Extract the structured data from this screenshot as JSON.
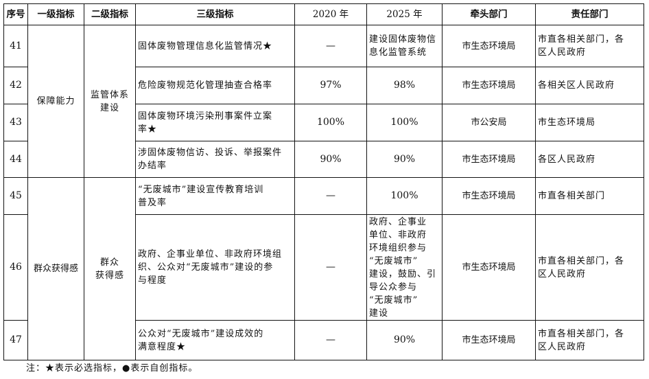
{
  "headers": [
    "序号",
    "一级指标",
    "二级指标",
    "三级指标",
    "2020 年",
    "2025 年",
    "牵头部门",
    "责任部门"
  ],
  "groups": {
    "level1_a": "保障能力",
    "level2_a": "监管体系\n建设",
    "level1_b": "群众获得感",
    "level2_b": "群众\n获得感"
  },
  "rows": [
    {
      "no": "41",
      "indicator": "固体废物管理信息化监管情况★",
      "y2020": "—",
      "y2025": "建设固体废物信\n息化监管系统",
      "lead": "市生态环境局",
      "resp": "市直各相关部门，各\n区人民政府"
    },
    {
      "no": "42",
      "indicator": "危险废物规范化管理抽查合格率",
      "y2020": "97%",
      "y2025": "98%",
      "lead": "市生态环境局",
      "resp": "各相关区人民政府"
    },
    {
      "no": "43",
      "indicator": "固体废物环境污染刑事案件立案\n率★",
      "y2020": "100%",
      "y2025": "100%",
      "lead": "市公安局",
      "resp": "市生态环境局"
    },
    {
      "no": "44",
      "indicator": "涉固体废物信访、投诉、举报案件\n办结率",
      "y2020": "90%",
      "y2025": "90%",
      "lead": "市生态环境局",
      "resp": "各区人民政府"
    },
    {
      "no": "45",
      "indicator": "“无废城市”建设宣传教育培训\n普及率",
      "y2020": "—",
      "y2025": "100%",
      "lead": "市生态环境局",
      "resp": "市直各相关部门"
    },
    {
      "no": "46",
      "indicator": "政府、企事业单位、非政府环境组\n织、公众对“无废城市”建设的参\n与程度",
      "y2020": "—",
      "y2025": "政府、企事业\n单位、非政府\n环境组织参与\n“无废城市”\n建设，鼓励、引\n导公众参与\n“无废城市”\n建设",
      "lead": "市生态环境局",
      "resp": "市直各相关部门，各\n区人民政府"
    },
    {
      "no": "47",
      "indicator": "公众对“无废城市”建设成效的\n满意程度★",
      "y2020": "—",
      "y2025": "90%",
      "lead": "市生态环境局",
      "resp": "市直各相关部门，各\n区人民政府"
    }
  ],
  "note": "注：★表示必选指标，●表示自创指标。"
}
